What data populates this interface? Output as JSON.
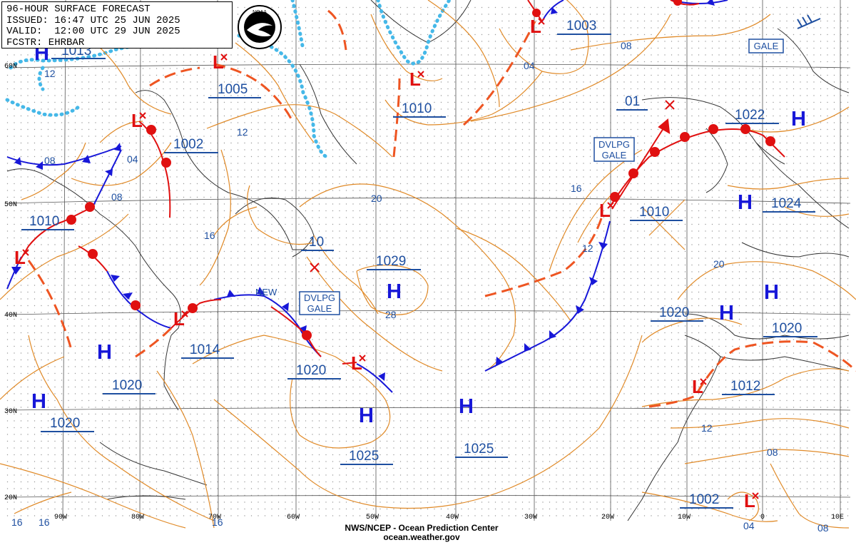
{
  "header": {
    "title": "96-HOUR SURFACE FORECAST",
    "issued": "ISSUED: 16:47 UTC 25 JUN 2025",
    "valid": "VALID:  12:00 UTC 29 JUN 2025",
    "forecaster": "FCSTR: EHRBAR"
  },
  "logo": {
    "icon": "noaa-logo",
    "text": "NOAA"
  },
  "credit": {
    "line1": "NWS/NCEP - Ocean Prediction Center",
    "line2": "ocean.weather.gov"
  },
  "colors": {
    "isobar": "#e08a28",
    "high": "#1717d8",
    "low": "#e01010",
    "cold_front": "#1717d8",
    "warm_front": "#e01010",
    "trough": "#ee5522",
    "ice_edge": "#45b8e8",
    "label": "#1e4fa0"
  },
  "latitudes": [
    "60N",
    "50N",
    "40N",
    "30N",
    "20N"
  ],
  "longitudes": [
    "90W",
    "80W",
    "70W",
    "60W",
    "50W",
    "40W",
    "30W",
    "20W",
    "10W",
    "0",
    "10E"
  ],
  "highs": [
    {
      "label": "H",
      "pressure": "1013"
    },
    {
      "label": "H",
      "pressure": "1029"
    },
    {
      "label": "H",
      "pressure": "1020"
    },
    {
      "label": "H",
      "pressure": "1020"
    },
    {
      "label": "H",
      "pressure": "1025"
    },
    {
      "label": "H",
      "pressure": "1025"
    },
    {
      "label": "H",
      "pressure": "1022"
    },
    {
      "label": "H",
      "pressure": "1024"
    },
    {
      "label": "H",
      "pressure": "1020"
    },
    {
      "label": "H",
      "pressure": "1020"
    }
  ],
  "lows": [
    {
      "label": "L",
      "pressure": "1005"
    },
    {
      "label": "L",
      "pressure": "1002"
    },
    {
      "label": "L",
      "pressure": "1010"
    },
    {
      "label": "L",
      "pressure": "1014"
    },
    {
      "label": "L",
      "pressure": "1020"
    },
    {
      "label": "L",
      "pressure": "1003"
    },
    {
      "label": "L",
      "pressure": "1010"
    },
    {
      "label": "L",
      "pressure": "1010"
    },
    {
      "label": "L",
      "pressure": "1012"
    },
    {
      "label": "L",
      "pressure": "1002"
    }
  ],
  "pressure_labels": [
    "10",
    "01"
  ],
  "isobar_labels": [
    "12",
    "12",
    "08",
    "04",
    "08",
    "16",
    "20",
    "28",
    "16",
    "12",
    "04",
    "08",
    "20",
    "12",
    "08",
    "04",
    "08",
    "16",
    "16",
    "16"
  ],
  "warnings": {
    "dvlpg_gale_west": [
      "DVLPG",
      "GALE"
    ],
    "dvlpg_gale_east": [
      "DVLPG",
      "GALE"
    ],
    "gale": "GALE"
  },
  "annotations": {
    "new": "NEW"
  }
}
